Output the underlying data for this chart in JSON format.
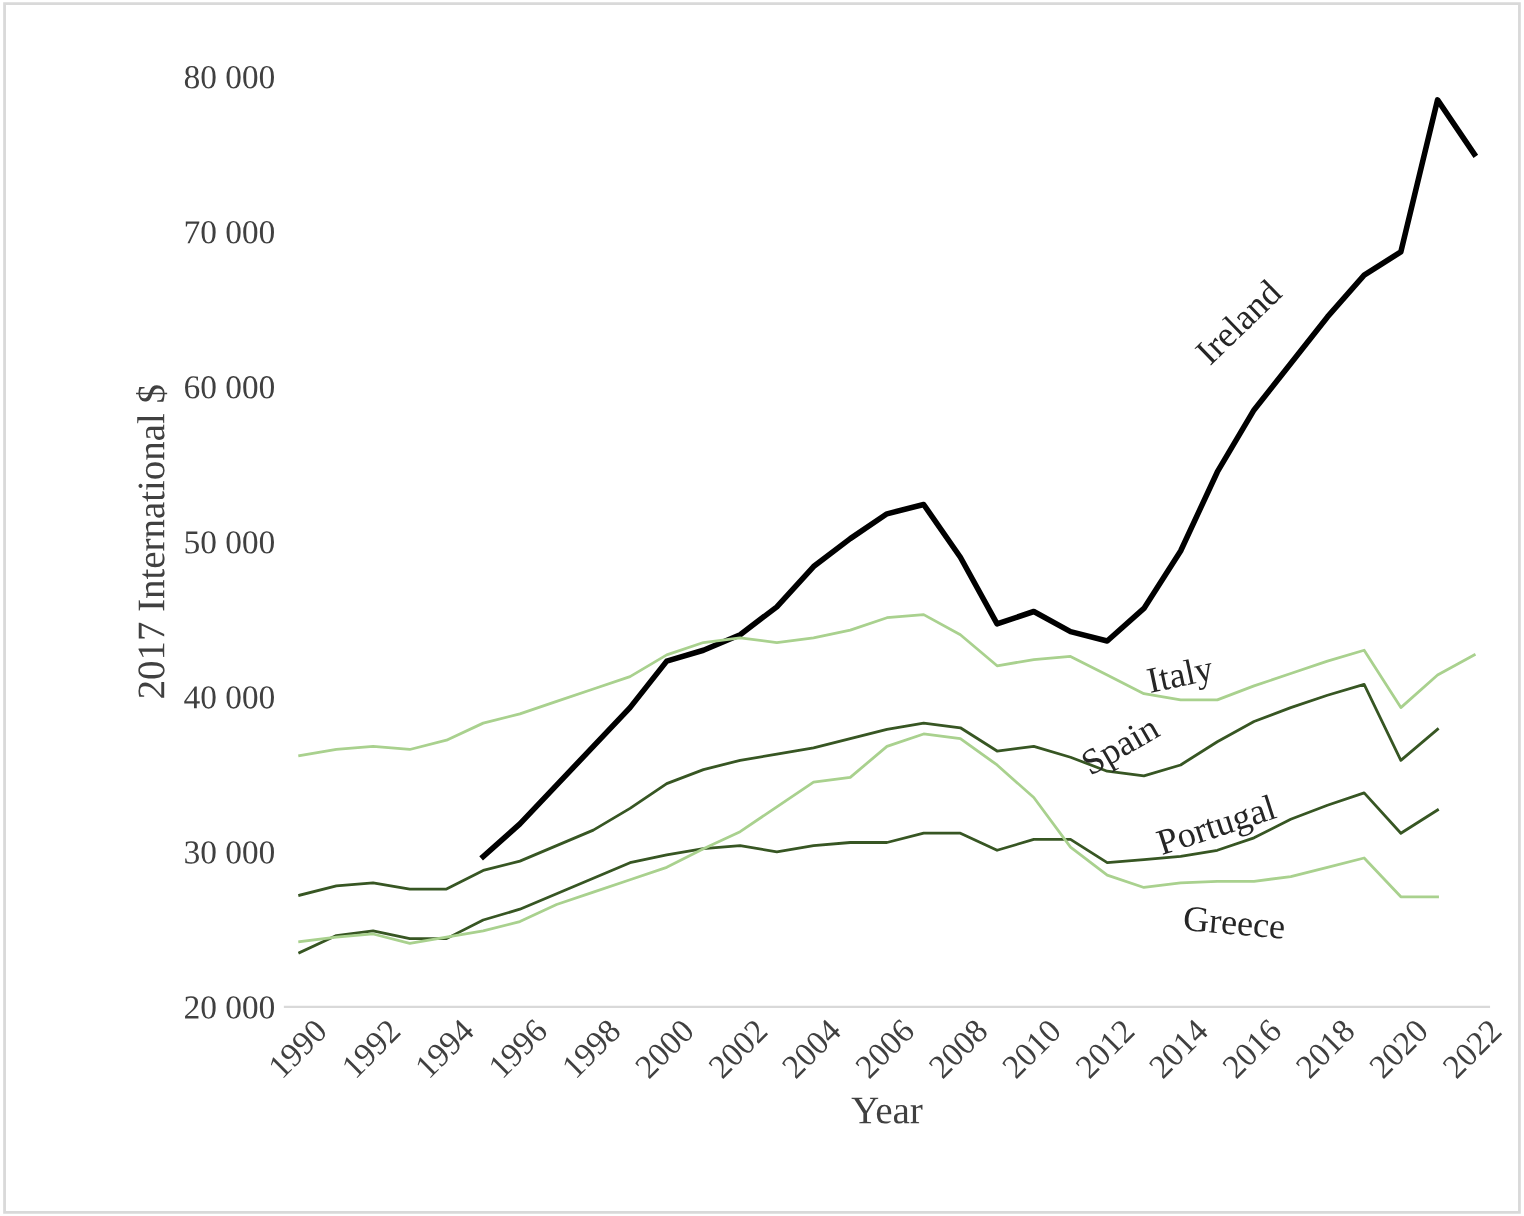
{
  "chart_data": {
    "type": "line",
    "xlabel": "Year",
    "ylabel": "2017 International $",
    "x": [
      1990,
      1991,
      1992,
      1993,
      1994,
      1995,
      1996,
      1997,
      1998,
      1999,
      2000,
      2001,
      2002,
      2003,
      2004,
      2005,
      2006,
      2007,
      2008,
      2009,
      2010,
      2011,
      2012,
      2013,
      2014,
      2015,
      2016,
      2017,
      2018,
      2019,
      2020,
      2021,
      2022
    ],
    "series": [
      {
        "name": "Ireland",
        "color": "#000000",
        "values": [
          null,
          null,
          null,
          null,
          null,
          29700,
          31800,
          34300,
          36800,
          39300,
          42300,
          43000,
          44000,
          45800,
          48400,
          50200,
          51800,
          52400,
          49000,
          44700,
          45500,
          44200,
          43600,
          45700,
          49400,
          54500,
          58500,
          61500,
          64500,
          67200,
          68700,
          78500,
          75000
        ]
      },
      {
        "name": "Italy",
        "color": "#a9d18e",
        "values": [
          36200,
          36600,
          36800,
          36600,
          37200,
          38300,
          38900,
          39700,
          40500,
          41300,
          42700,
          43500,
          43800,
          43500,
          43800,
          44300,
          45100,
          45300,
          44000,
          42000,
          42400,
          42600,
          41400,
          40200,
          39800,
          39800,
          40700,
          41500,
          42300,
          43000,
          39300,
          41400,
          42700
        ]
      },
      {
        "name": "Spain",
        "color": "#375623",
        "values": [
          27200,
          27800,
          28000,
          27600,
          27600,
          28800,
          29400,
          30400,
          31400,
          32800,
          34400,
          35300,
          35900,
          36300,
          36700,
          37300,
          37900,
          38300,
          38000,
          36500,
          36800,
          36100,
          35200,
          34900,
          35600,
          37100,
          38400,
          39300,
          40100,
          40800,
          35900,
          37900,
          null
        ]
      },
      {
        "name": "Portugal",
        "color": "#375623",
        "values": [
          23500,
          24600,
          24900,
          24400,
          24400,
          25600,
          26300,
          27300,
          28300,
          29300,
          29800,
          30200,
          30400,
          30000,
          30400,
          30600,
          30600,
          31200,
          31200,
          30100,
          30800,
          30800,
          29300,
          29500,
          29700,
          30100,
          30900,
          32100,
          33000,
          33800,
          31200,
          32700,
          null
        ]
      },
      {
        "name": "Greece",
        "color": "#a9d18e",
        "values": [
          24200,
          24500,
          24700,
          24100,
          24500,
          24900,
          25500,
          26600,
          27400,
          28200,
          29000,
          30200,
          31300,
          32900,
          34500,
          34800,
          36800,
          37600,
          37300,
          35600,
          33500,
          30300,
          28500,
          27700,
          28000,
          28100,
          28100,
          28400,
          29000,
          29600,
          27100,
          27100,
          null
        ]
      }
    ],
    "xlim": [
      1989.6,
      2022.4
    ],
    "xticks": [
      1990,
      1992,
      1994,
      1996,
      1998,
      2000,
      2002,
      2004,
      2006,
      2008,
      2010,
      2012,
      2014,
      2016,
      2018,
      2020,
      2022
    ],
    "ylim": [
      20000,
      80000
    ],
    "yticks": [
      {
        "value": 20000,
        "label": "20 000"
      },
      {
        "value": 30000,
        "label": "30 000"
      },
      {
        "value": 40000,
        "label": "40 000"
      },
      {
        "value": 50000,
        "label": "50 000"
      },
      {
        "value": 60000,
        "label": "60 000"
      },
      {
        "value": 70000,
        "label": "70 000"
      },
      {
        "value": 80000,
        "label": "80 000"
      }
    ],
    "grid": false,
    "legend": false,
    "marker": "none",
    "line_style": "solid"
  }
}
